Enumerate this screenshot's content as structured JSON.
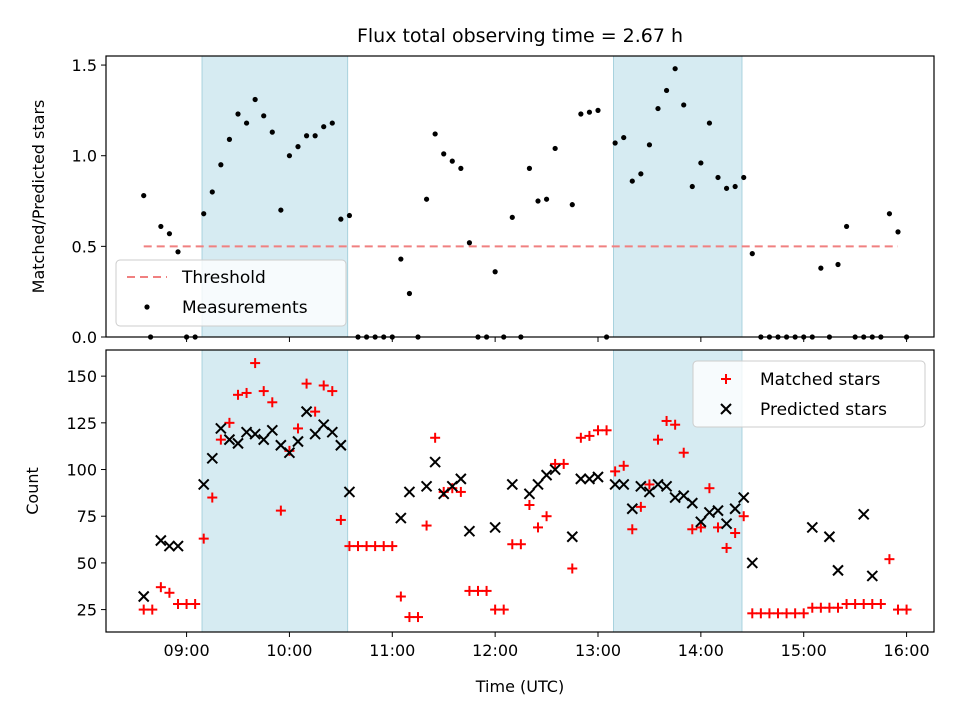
{
  "chart_data": [
    {
      "type": "scatter",
      "title": "Flux total observing time = 2.67 h",
      "xlabel": "",
      "ylabel": "Matched/Predicted stars",
      "ylim": [
        0,
        1.55
      ],
      "yticks": [
        0,
        0.5,
        1.0,
        1.5
      ],
      "ytick_labels": [
        "0.0",
        "0.5",
        "1.0",
        "1.5"
      ],
      "xlim": [
        "08:13",
        "16:16"
      ],
      "highlight_bands": [
        [
          "09:09",
          "10:34"
        ],
        [
          "13:09",
          "14:24"
        ]
      ],
      "threshold": {
        "name": "Threshold",
        "value": 0.5,
        "x_range": [
          "08:35",
          "15:55"
        ],
        "color": "#f08080"
      },
      "legend_position": "lower-left",
      "series": [
        {
          "name": "Measurements",
          "color": "#000000",
          "points": [
            [
              "08:35",
              0.78
            ],
            [
              "08:39",
              0
            ],
            [
              "08:45",
              0.61
            ],
            [
              "08:50",
              0.57
            ],
            [
              "08:55",
              0.47
            ],
            [
              "09:00",
              0
            ],
            [
              "09:05",
              0
            ],
            [
              "09:10",
              0.68
            ],
            [
              "09:15",
              0.8
            ],
            [
              "09:20",
              0.95
            ],
            [
              "09:25",
              1.09
            ],
            [
              "09:30",
              1.23
            ],
            [
              "09:35",
              1.18
            ],
            [
              "09:40",
              1.31
            ],
            [
              "09:45",
              1.22
            ],
            [
              "09:50",
              1.13
            ],
            [
              "09:55",
              0.7
            ],
            [
              "10:00",
              1.0
            ],
            [
              "10:05",
              1.05
            ],
            [
              "10:10",
              1.11
            ],
            [
              "10:15",
              1.11
            ],
            [
              "10:20",
              1.16
            ],
            [
              "10:25",
              1.18
            ],
            [
              "10:30",
              0.65
            ],
            [
              "10:35",
              0.67
            ],
            [
              "10:40",
              0
            ],
            [
              "10:45",
              0
            ],
            [
              "10:50",
              0
            ],
            [
              "10:55",
              0
            ],
            [
              "11:00",
              0
            ],
            [
              "11:05",
              0.43
            ],
            [
              "11:10",
              0.24
            ],
            [
              "11:15",
              0
            ],
            [
              "11:20",
              0.76
            ],
            [
              "11:25",
              1.12
            ],
            [
              "11:30",
              1.01
            ],
            [
              "11:35",
              0.97
            ],
            [
              "11:40",
              0.93
            ],
            [
              "11:45",
              0.52
            ],
            [
              "11:50",
              0
            ],
            [
              "11:55",
              0
            ],
            [
              "12:00",
              0.36
            ],
            [
              "12:05",
              0
            ],
            [
              "12:10",
              0.66
            ],
            [
              "12:15",
              0
            ],
            [
              "12:20",
              0.93
            ],
            [
              "12:25",
              0.75
            ],
            [
              "12:30",
              0.76
            ],
            [
              "12:35",
              1.04
            ],
            [
              "12:45",
              0.73
            ],
            [
              "12:50",
              1.23
            ],
            [
              "12:55",
              1.24
            ],
            [
              "13:00",
              1.25
            ],
            [
              "13:05",
              0
            ],
            [
              "13:10",
              1.07
            ],
            [
              "13:15",
              1.1
            ],
            [
              "13:20",
              0.86
            ],
            [
              "13:25",
              0.9
            ],
            [
              "13:30",
              1.06
            ],
            [
              "13:35",
              1.26
            ],
            [
              "13:40",
              1.36
            ],
            [
              "13:45",
              1.48
            ],
            [
              "13:50",
              1.28
            ],
            [
              "13:55",
              0.83
            ],
            [
              "14:00",
              0.96
            ],
            [
              "14:05",
              1.18
            ],
            [
              "14:10",
              0.88
            ],
            [
              "14:15",
              0.82
            ],
            [
              "14:20",
              0.83
            ],
            [
              "14:25",
              0.88
            ],
            [
              "14:30",
              0.46
            ],
            [
              "14:35",
              0
            ],
            [
              "14:40",
              0
            ],
            [
              "14:45",
              0
            ],
            [
              "14:50",
              0
            ],
            [
              "14:55",
              0
            ],
            [
              "15:00",
              0
            ],
            [
              "15:05",
              0
            ],
            [
              "15:10",
              0.38
            ],
            [
              "15:15",
              0
            ],
            [
              "15:20",
              0.4
            ],
            [
              "15:25",
              0.61
            ],
            [
              "15:30",
              0
            ],
            [
              "15:35",
              0
            ],
            [
              "15:40",
              0
            ],
            [
              "15:45",
              0
            ],
            [
              "15:50",
              0.68
            ],
            [
              "15:55",
              0.58
            ],
            [
              "16:00",
              0
            ]
          ]
        }
      ]
    },
    {
      "type": "scatter",
      "title": "",
      "xlabel": "Time (UTC)",
      "ylabel": "Count",
      "ylim": [
        13,
        164
      ],
      "yticks": [
        25,
        50,
        75,
        100,
        125,
        150
      ],
      "ytick_labels": [
        "25",
        "50",
        "75",
        "100",
        "125",
        "150"
      ],
      "xlim": [
        "08:13",
        "16:16"
      ],
      "xticks": [
        "09:00",
        "10:00",
        "11:00",
        "12:00",
        "13:00",
        "14:00",
        "15:00",
        "16:00"
      ],
      "xtick_labels": [
        "09:00",
        "10:00",
        "11:00",
        "12:00",
        "13:00",
        "14:00",
        "15:00",
        "16:00"
      ],
      "highlight_bands": [
        [
          "09:09",
          "10:34"
        ],
        [
          "13:09",
          "14:24"
        ]
      ],
      "legend_position": "upper-right",
      "series": [
        {
          "name": "Matched stars",
          "color": "#ff0000",
          "marker": "plus",
          "points": [
            [
              "08:35",
              25
            ],
            [
              "08:40",
              25
            ],
            [
              "08:45",
              37
            ],
            [
              "08:50",
              34
            ],
            [
              "08:55",
              28
            ],
            [
              "09:00",
              28
            ],
            [
              "09:05",
              28
            ],
            [
              "09:10",
              63
            ],
            [
              "09:15",
              85
            ],
            [
              "09:20",
              116
            ],
            [
              "09:25",
              125
            ],
            [
              "09:30",
              140
            ],
            [
              "09:35",
              141
            ],
            [
              "09:40",
              157
            ],
            [
              "09:45",
              142
            ],
            [
              "09:50",
              136
            ],
            [
              "09:55",
              78
            ],
            [
              "10:00",
              110
            ],
            [
              "10:05",
              122
            ],
            [
              "10:10",
              146
            ],
            [
              "10:15",
              131
            ],
            [
              "10:20",
              145
            ],
            [
              "10:25",
              142
            ],
            [
              "10:30",
              73
            ],
            [
              "10:35",
              59
            ],
            [
              "10:40",
              59
            ],
            [
              "10:45",
              59
            ],
            [
              "10:50",
              59
            ],
            [
              "10:55",
              59
            ],
            [
              "11:00",
              59
            ],
            [
              "11:05",
              32
            ],
            [
              "11:10",
              21
            ],
            [
              "11:15",
              21
            ],
            [
              "11:20",
              70
            ],
            [
              "11:25",
              117
            ],
            [
              "11:30",
              88
            ],
            [
              "11:35",
              90
            ],
            [
              "11:40",
              88
            ],
            [
              "11:45",
              35
            ],
            [
              "11:50",
              35
            ],
            [
              "11:55",
              35
            ],
            [
              "12:00",
              25
            ],
            [
              "12:05",
              25
            ],
            [
              "12:10",
              60
            ],
            [
              "12:15",
              60
            ],
            [
              "12:20",
              81
            ],
            [
              "12:25",
              69
            ],
            [
              "12:30",
              75
            ],
            [
              "12:35",
              103
            ],
            [
              "12:40",
              103
            ],
            [
              "12:45",
              47
            ],
            [
              "12:50",
              117
            ],
            [
              "12:55",
              118
            ],
            [
              "13:00",
              121
            ],
            [
              "13:05",
              121
            ],
            [
              "13:10",
              99
            ],
            [
              "13:15",
              102
            ],
            [
              "13:20",
              68
            ],
            [
              "13:25",
              80
            ],
            [
              "13:30",
              92
            ],
            [
              "13:35",
              116
            ],
            [
              "13:40",
              126
            ],
            [
              "13:45",
              124
            ],
            [
              "13:50",
              109
            ],
            [
              "13:55",
              68
            ],
            [
              "14:00",
              69
            ],
            [
              "14:05",
              90
            ],
            [
              "14:10",
              69
            ],
            [
              "14:15",
              58
            ],
            [
              "14:20",
              66
            ],
            [
              "14:25",
              75
            ],
            [
              "14:30",
              23
            ],
            [
              "14:35",
              23
            ],
            [
              "14:40",
              23
            ],
            [
              "14:45",
              23
            ],
            [
              "14:50",
              23
            ],
            [
              "14:55",
              23
            ],
            [
              "15:00",
              23
            ],
            [
              "15:05",
              26
            ],
            [
              "15:10",
              26
            ],
            [
              "15:15",
              26
            ],
            [
              "15:20",
              26
            ],
            [
              "15:25",
              28
            ],
            [
              "15:30",
              28
            ],
            [
              "15:35",
              28
            ],
            [
              "15:40",
              28
            ],
            [
              "15:45",
              28
            ],
            [
              "15:50",
              52
            ],
            [
              "15:55",
              25
            ],
            [
              "16:00",
              25
            ]
          ]
        },
        {
          "name": "Predicted stars",
          "color": "#000000",
          "marker": "x",
          "points": [
            [
              "08:35",
              32
            ],
            [
              "08:45",
              62
            ],
            [
              "08:50",
              59
            ],
            [
              "08:55",
              59
            ],
            [
              "09:10",
              92
            ],
            [
              "09:15",
              106
            ],
            [
              "09:20",
              122
            ],
            [
              "09:25",
              116
            ],
            [
              "09:30",
              114
            ],
            [
              "09:35",
              120
            ],
            [
              "09:40",
              119
            ],
            [
              "09:45",
              116
            ],
            [
              "09:50",
              121
            ],
            [
              "09:55",
              113
            ],
            [
              "10:00",
              109
            ],
            [
              "10:05",
              115
            ],
            [
              "10:10",
              131
            ],
            [
              "10:15",
              119
            ],
            [
              "10:20",
              124
            ],
            [
              "10:25",
              120
            ],
            [
              "10:30",
              113
            ],
            [
              "10:35",
              88
            ],
            [
              "11:05",
              74
            ],
            [
              "11:10",
              88
            ],
            [
              "11:20",
              91
            ],
            [
              "11:25",
              104
            ],
            [
              "11:30",
              87
            ],
            [
              "11:35",
              91
            ],
            [
              "11:40",
              95
            ],
            [
              "11:45",
              67
            ],
            [
              "12:00",
              69
            ],
            [
              "12:10",
              92
            ],
            [
              "12:20",
              87
            ],
            [
              "12:25",
              92
            ],
            [
              "12:30",
              97
            ],
            [
              "12:35",
              100
            ],
            [
              "12:45",
              64
            ],
            [
              "12:50",
              95
            ],
            [
              "12:55",
              95
            ],
            [
              "13:00",
              96
            ],
            [
              "13:10",
              92
            ],
            [
              "13:15",
              92
            ],
            [
              "13:20",
              79
            ],
            [
              "13:25",
              91
            ],
            [
              "13:30",
              88
            ],
            [
              "13:35",
              92
            ],
            [
              "13:40",
              91
            ],
            [
              "13:45",
              85
            ],
            [
              "13:50",
              86
            ],
            [
              "13:55",
              82
            ],
            [
              "14:00",
              72
            ],
            [
              "14:05",
              77
            ],
            [
              "14:10",
              78
            ],
            [
              "14:15",
              71
            ],
            [
              "14:20",
              79
            ],
            [
              "14:25",
              85
            ],
            [
              "14:30",
              50
            ],
            [
              "15:05",
              69
            ],
            [
              "15:15",
              64
            ],
            [
              "15:20",
              46
            ],
            [
              "15:35",
              76
            ],
            [
              "15:40",
              43
            ]
          ]
        }
      ]
    }
  ]
}
